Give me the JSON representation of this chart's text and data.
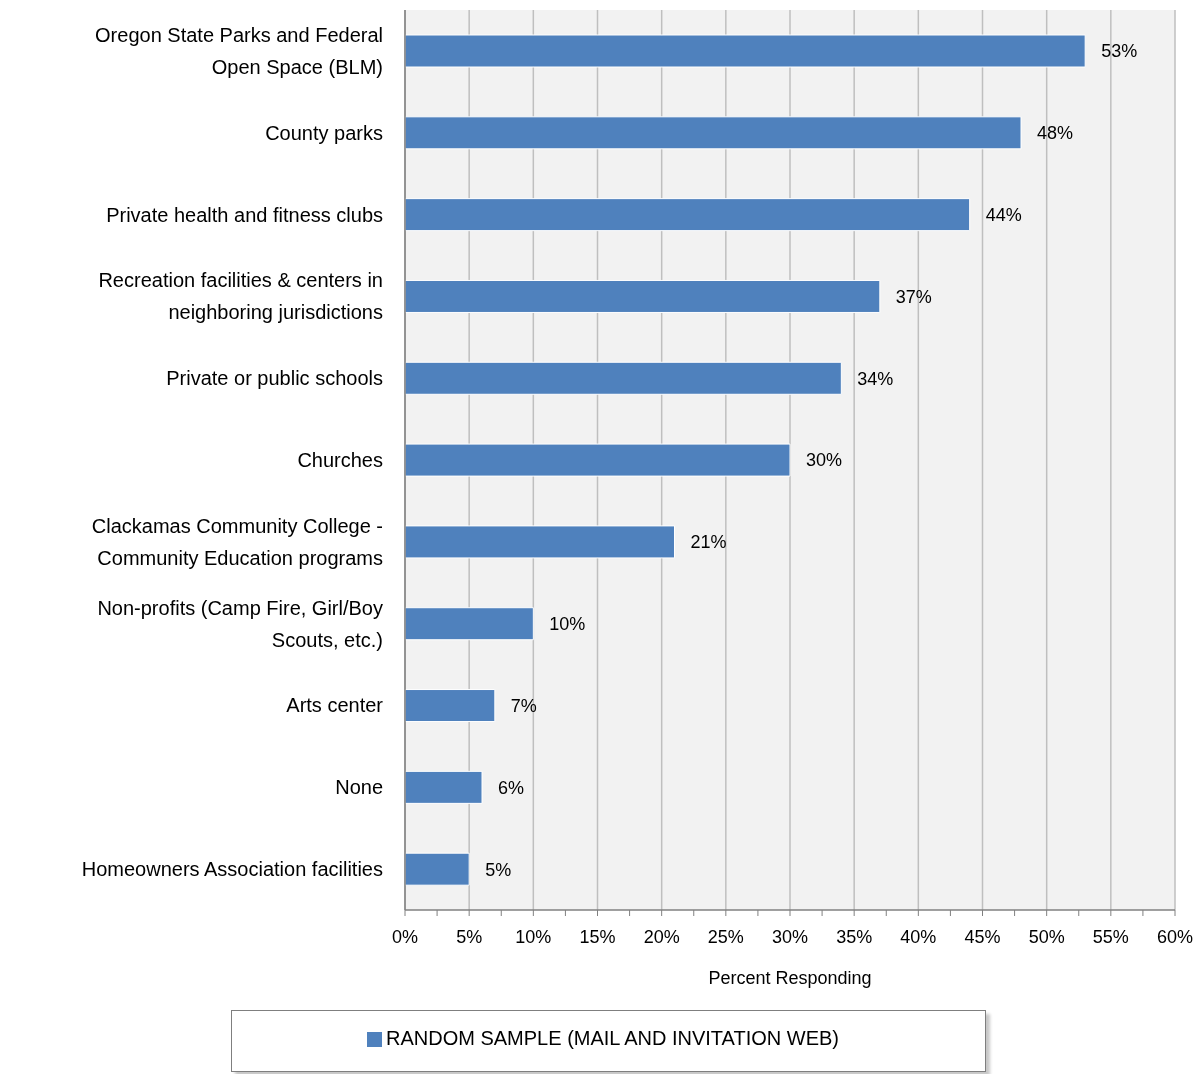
{
  "chart_data": {
    "type": "bar",
    "orientation": "horizontal",
    "categories": [
      "Oregon State Parks and Federal Open Space (BLM)",
      "County parks",
      "Private health and fitness clubs",
      "Recreation facilities & centers in neighboring jurisdictions",
      "Private or public schools",
      "Churches",
      "Clackamas Community College - Community Education programs",
      "Non-profits (Camp Fire, Girl/Boy Scouts, etc.)",
      "Arts center",
      "None",
      "Homeowners Association facilities"
    ],
    "series": [
      {
        "name": "RANDOM SAMPLE (MAIL AND INVITATION WEB)",
        "color": "#4f81bd",
        "values": [
          53,
          48,
          44,
          37,
          34,
          30,
          21,
          10,
          7,
          6,
          5
        ],
        "value_labels": [
          "53%",
          "48%",
          "44%",
          "37%",
          "34%",
          "30%",
          "21%",
          "10%",
          "7%",
          "6%",
          "5%"
        ]
      }
    ],
    "xlabel": "Percent Responding",
    "xlim": [
      0,
      60
    ],
    "xticks": [
      {
        "value": 0,
        "label": "0%"
      },
      {
        "value": 2.5,
        "label": null
      },
      {
        "value": 5,
        "label": "5%"
      },
      {
        "value": 7.5,
        "label": null
      },
      {
        "value": 10,
        "label": "10%"
      },
      {
        "value": 12.5,
        "label": null
      },
      {
        "value": 15,
        "label": "15%"
      },
      {
        "value": 17.5,
        "label": null
      },
      {
        "value": 20,
        "label": "20%"
      },
      {
        "value": 22.5,
        "label": null
      },
      {
        "value": 25,
        "label": "25%"
      },
      {
        "value": 27.5,
        "label": null
      },
      {
        "value": 30,
        "label": "30%"
      },
      {
        "value": 32.5,
        "label": null
      },
      {
        "value": 35,
        "label": "35%"
      },
      {
        "value": 37.5,
        "label": null
      },
      {
        "value": 40,
        "label": "40%"
      },
      {
        "value": 42.5,
        "label": null
      },
      {
        "value": 45,
        "label": "45%"
      },
      {
        "value": 47.5,
        "label": null
      },
      {
        "value": 50,
        "label": "50%"
      },
      {
        "value": 52.5,
        "label": null
      },
      {
        "value": 55,
        "label": "55%"
      },
      {
        "value": 57.5,
        "label": null
      },
      {
        "value": 60,
        "label": "60%"
      }
    ],
    "grid": "x",
    "legend": "bottom"
  }
}
